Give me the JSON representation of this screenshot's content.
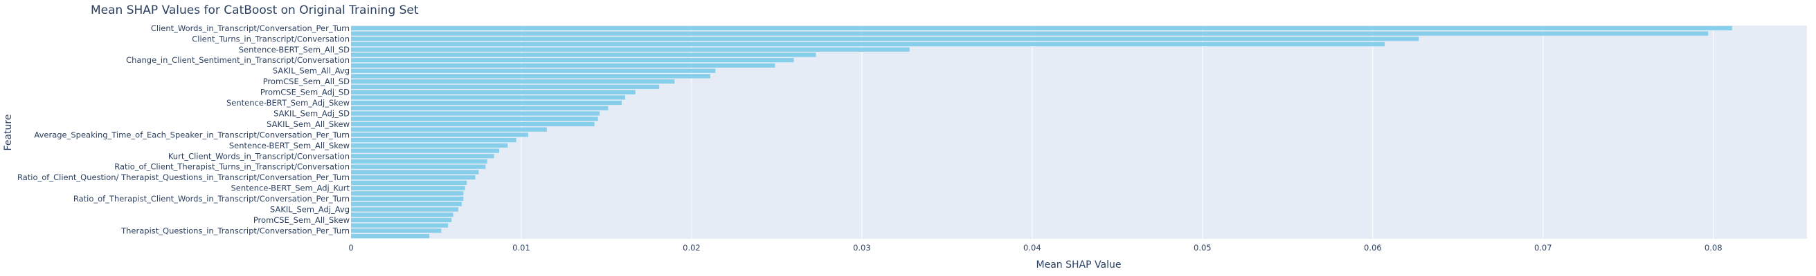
{
  "chart_data": {
    "type": "bar",
    "orientation": "horizontal",
    "title": "Mean SHAP Values for CatBoost on Original Training Set",
    "xlabel": "Mean SHAP Value",
    "ylabel": "Feature",
    "xlim": [
      0,
      0.0855
    ],
    "xticks": [
      0,
      0.01,
      0.02,
      0.03,
      0.04,
      0.05,
      0.06,
      0.07,
      0.08
    ],
    "xtick_labels": [
      "0",
      "0.01",
      "0.02",
      "0.03",
      "0.04",
      "0.05",
      "0.06",
      "0.07",
      "0.08"
    ],
    "grid": true,
    "bar_color": "#87ceeb",
    "plot_bg": "#e5ecf6",
    "categories": [
      "Client_Words_in_Transcript/Conversation_Per_Turn",
      "",
      "Client_Turns_in_Transcript/Conversation",
      "",
      "Sentence-BERT_Sem_All_SD",
      "",
      "Change_in_Client_Sentiment_in_Transcript/Conversation",
      "",
      "SAKIL_Sem_All_Avg",
      "",
      "PromCSE_Sem_All_SD",
      "",
      "PromCSE_Sem_Adj_SD",
      "",
      "Sentence-BERT_Sem_Adj_Skew",
      "",
      "SAKIL_Sem_Adj_SD",
      "",
      "SAKIL_Sem_All_Skew",
      "",
      "Average_Speaking_Time_of_Each_Speaker_in_Transcript/Conversation_Per_Turn",
      "",
      "Sentence-BERT_Sem_All_Skew",
      "",
      "Kurt_Client_Words_in_Transcript/Conversation",
      "",
      "Ratio_of_Client_Therapist_Turns_in_Transcript/Conversation",
      "",
      "Ratio_of_Client_Question/ Therapist_Questions_in_Transcript/Conversation_Per_Turn",
      "",
      "Sentence-BERT_Sem_Adj_Kurt",
      "",
      "Ratio_of_Therapist_Client_Words_in_Transcript/Conversation_Per_Turn",
      "",
      "SAKIL_Sem_Adj_Avg",
      "",
      "PromCSE_Sem_All_Skew",
      "",
      "Therapist_Questions_in_Transcript/Conversation_Per_Turn",
      ""
    ],
    "values": [
      0.0811,
      0.0797,
      0.0627,
      0.0607,
      0.0328,
      0.0273,
      0.026,
      0.0249,
      0.0214,
      0.0211,
      0.019,
      0.0181,
      0.0167,
      0.0161,
      0.0159,
      0.0151,
      0.0146,
      0.0145,
      0.0143,
      0.0115,
      0.0104,
      0.0097,
      0.0092,
      0.0087,
      0.0084,
      0.008,
      0.0079,
      0.0075,
      0.0073,
      0.0068,
      0.0067,
      0.0066,
      0.0066,
      0.0065,
      0.0063,
      0.006,
      0.0059,
      0.0057,
      0.0053,
      0.0046
    ]
  }
}
